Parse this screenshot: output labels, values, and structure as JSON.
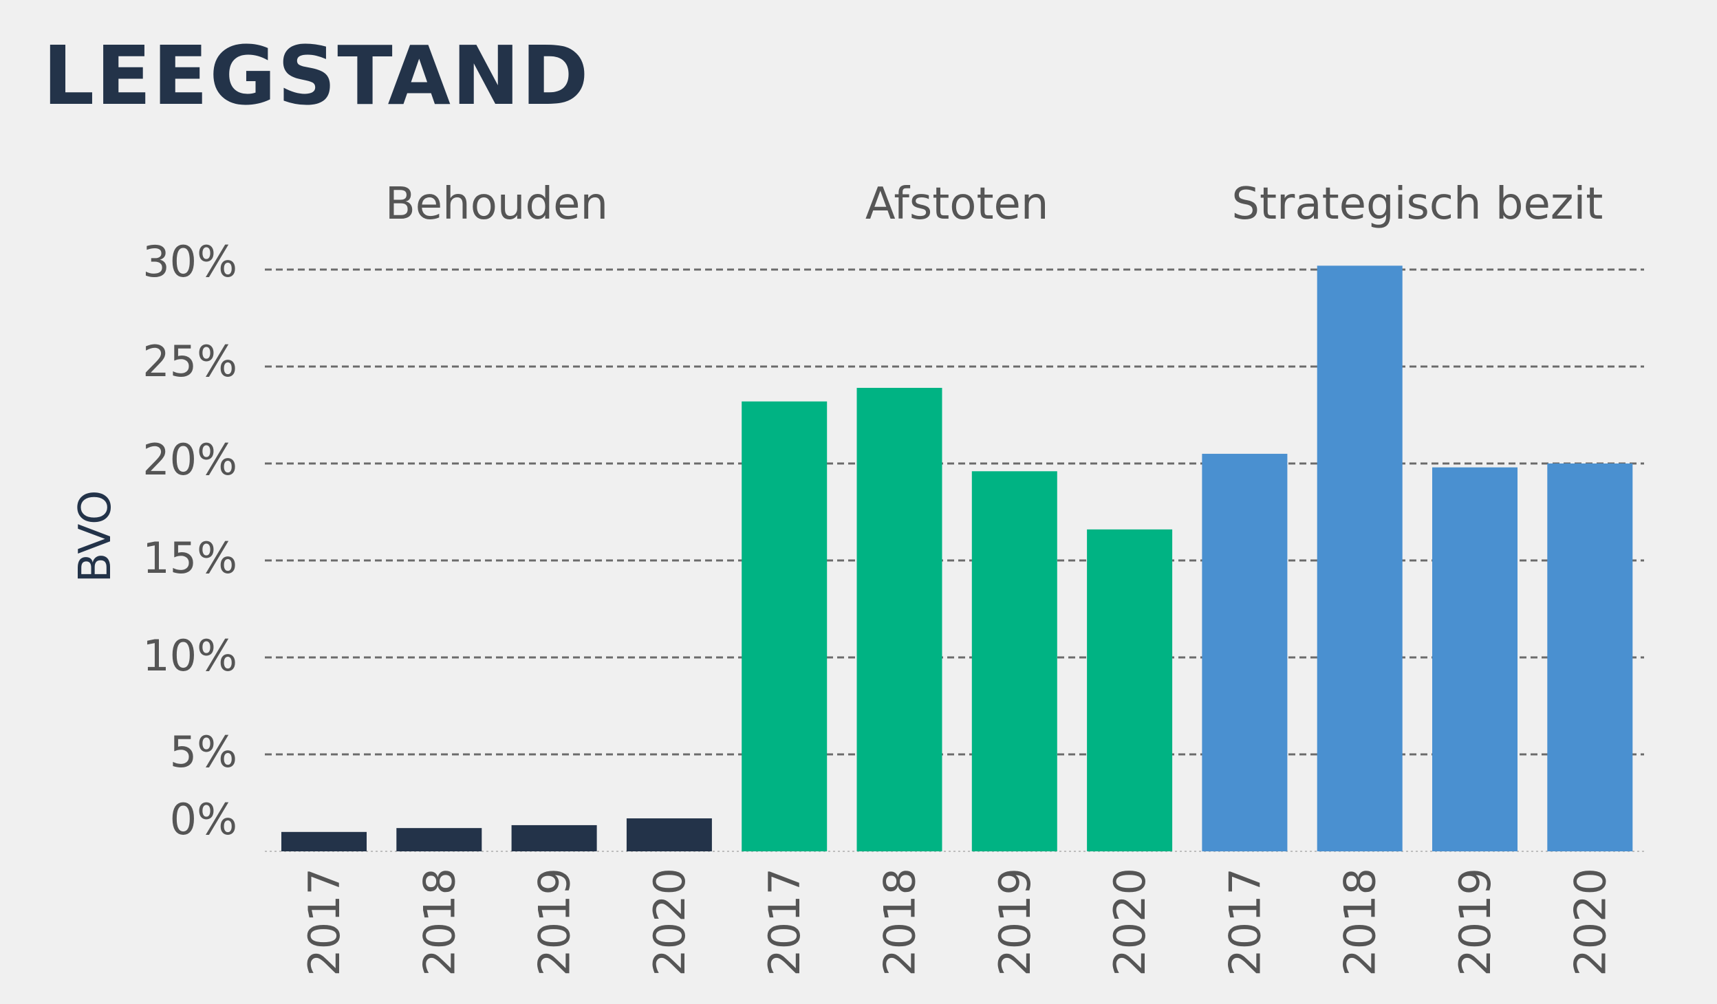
{
  "title": "LEEGSTAND",
  "chart_data": {
    "type": "bar",
    "ylabel": "BVO",
    "ylim": [
      0,
      30
    ],
    "yticks": [
      "0%",
      "5%",
      "10%",
      "15%",
      "20%",
      "25%",
      "30%"
    ],
    "ytick_values": [
      0,
      5,
      10,
      15,
      20,
      25,
      30
    ],
    "grid": true,
    "groups": [
      {
        "name": "Behouden",
        "color": "#233349",
        "categories": [
          "2017",
          "2018",
          "2019",
          "2020"
        ],
        "values": [
          1.0,
          1.2,
          1.35,
          1.7
        ]
      },
      {
        "name": "Afstoten",
        "color": "#00b383",
        "categories": [
          "2017",
          "2018",
          "2019",
          "2020"
        ],
        "values": [
          23.2,
          23.9,
          19.6,
          16.6
        ]
      },
      {
        "name": "Strategisch bezit",
        "color": "#4a90d0",
        "categories": [
          "2017",
          "2018",
          "2019",
          "2020"
        ],
        "values": [
          20.5,
          30.2,
          19.8,
          20.0
        ]
      }
    ],
    "colors": {
      "grid": "#6b6b6b",
      "axis_text": "#555555",
      "ylabel_text": "#233349"
    }
  }
}
